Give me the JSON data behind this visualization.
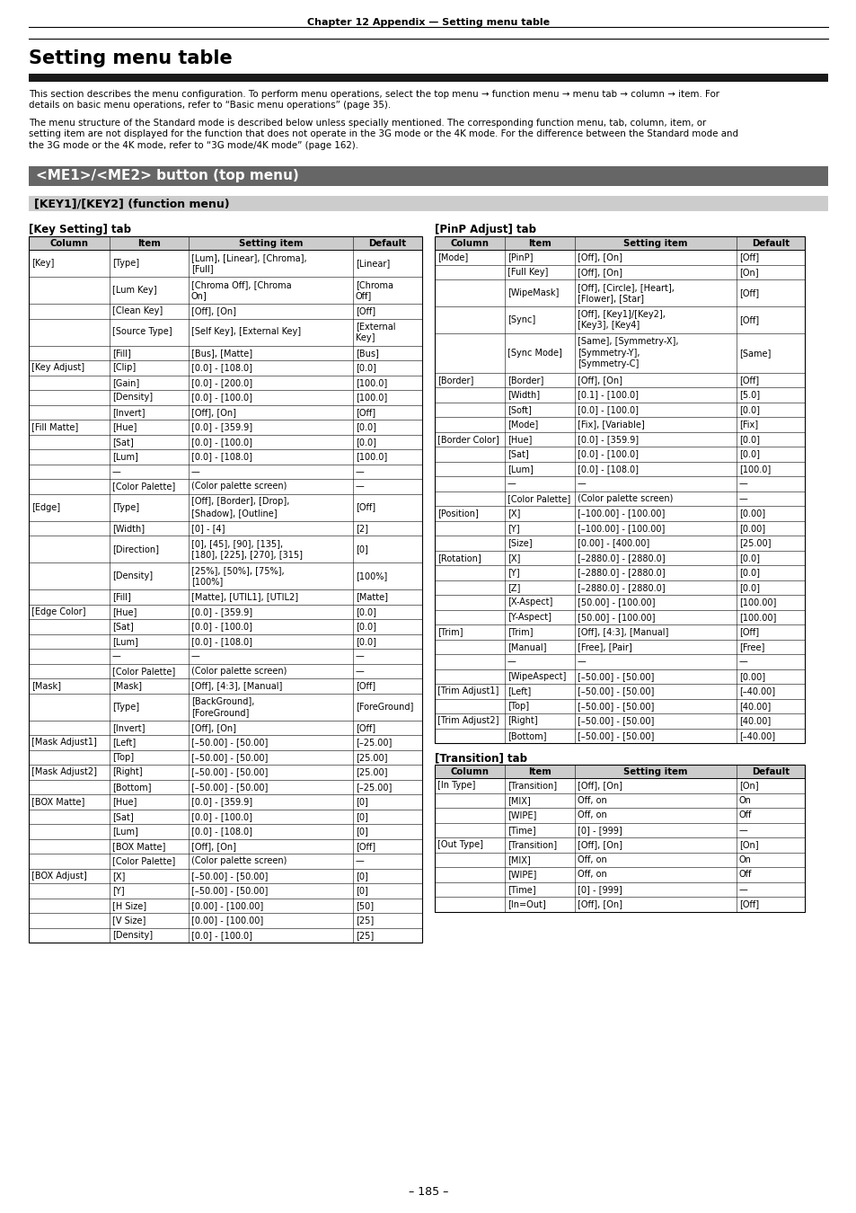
{
  "page_header": "Chapter 12 Appendix — Setting menu table",
  "title": "Setting menu table",
  "title_bar_color": "#1a1a1a",
  "intro_text1": "This section describes the menu configuration. To perform menu operations, select the top menu → function menu → menu tab → column → item. For\ndetails on basic menu operations, refer to “Basic menu operations” (page 35).",
  "intro_text2": "The menu structure of the Standard mode is described below unless specially mentioned. The corresponding function menu, tab, column, item, or\nsetting item are not displayed for the function that does not operate in the 3G mode or the 4K mode. For the difference between the Standard mode and\nthe 3G mode or the 4K mode, refer to “3G mode/4K mode” (page 162).",
  "section_header": "<ME1>/<ME2> button (top menu)",
  "section_header_bg": "#666666",
  "section_header_fg": "#ffffff",
  "subsection_header": "[KEY1]/[KEY2] (function menu)",
  "subsection_header_bg": "#cccccc",
  "left_tab_title": "[Key Setting] tab",
  "right_tab_title": "[PinP Adjust] tab",
  "left_table_headers": [
    "Column",
    "Item",
    "Setting item",
    "Default"
  ],
  "left_table_data": [
    [
      "[Key]",
      "[Type]",
      "[Lum], [Linear], [Chroma],\n[Full]",
      "[Linear]"
    ],
    [
      "",
      "[Lum Key]",
      "[Chroma Off], [Chroma\nOn]",
      "[Chroma\nOff]"
    ],
    [
      "",
      "[Clean Key]",
      "[Off], [On]",
      "[Off]"
    ],
    [
      "",
      "[Source Type]",
      "[Self Key], [External Key]",
      "[External\nKey]"
    ],
    [
      "",
      "[Fill]",
      "[Bus], [Matte]",
      "[Bus]"
    ],
    [
      "[Key Adjust]",
      "[Clip]",
      "[0.0] - [108.0]",
      "[0.0]"
    ],
    [
      "",
      "[Gain]",
      "[0.0] - [200.0]",
      "[100.0]"
    ],
    [
      "",
      "[Density]",
      "[0.0] - [100.0]",
      "[100.0]"
    ],
    [
      "",
      "[Invert]",
      "[Off], [On]",
      "[Off]"
    ],
    [
      "[Fill Matte]",
      "[Hue]",
      "[0.0] - [359.9]",
      "[0.0]"
    ],
    [
      "",
      "[Sat]",
      "[0.0] - [100.0]",
      "[0.0]"
    ],
    [
      "",
      "[Lum]",
      "[0.0] - [108.0]",
      "[100.0]"
    ],
    [
      "",
      "—",
      "—",
      "—"
    ],
    [
      "",
      "[Color Palette]",
      "(Color palette screen)",
      "—"
    ],
    [
      "[Edge]",
      "[Type]",
      "[Off], [Border], [Drop],\n[Shadow], [Outline]",
      "[Off]"
    ],
    [
      "",
      "[Width]",
      "[0] - [4]",
      "[2]"
    ],
    [
      "",
      "[Direction]",
      "[0], [45], [90], [135],\n[180], [225], [270], [315]",
      "[0]"
    ],
    [
      "",
      "[Density]",
      "[25%], [50%], [75%],\n[100%]",
      "[100%]"
    ],
    [
      "",
      "[Fill]",
      "[Matte], [UTIL1], [UTIL2]",
      "[Matte]"
    ],
    [
      "[Edge Color]",
      "[Hue]",
      "[0.0] - [359.9]",
      "[0.0]"
    ],
    [
      "",
      "[Sat]",
      "[0.0] - [100.0]",
      "[0.0]"
    ],
    [
      "",
      "[Lum]",
      "[0.0] - [108.0]",
      "[0.0]"
    ],
    [
      "",
      "—",
      "—",
      "—"
    ],
    [
      "",
      "[Color Palette]",
      "(Color palette screen)",
      "—"
    ],
    [
      "[Mask]",
      "[Mask]",
      "[Off], [4:3], [Manual]",
      "[Off]"
    ],
    [
      "",
      "[Type]",
      "[BackGround],\n[ForeGround]",
      "[ForeGround]"
    ],
    [
      "",
      "[Invert]",
      "[Off], [On]",
      "[Off]"
    ],
    [
      "[Mask Adjust1]",
      "[Left]",
      "[–50.00] - [50.00]",
      "[–25.00]"
    ],
    [
      "",
      "[Top]",
      "[–50.00] - [50.00]",
      "[25.00]"
    ],
    [
      "[Mask Adjust2]",
      "[Right]",
      "[–50.00] - [50.00]",
      "[25.00]"
    ],
    [
      "",
      "[Bottom]",
      "[–50.00] - [50.00]",
      "[–25.00]"
    ],
    [
      "[BOX Matte]",
      "[Hue]",
      "[0.0] - [359.9]",
      "[0]"
    ],
    [
      "",
      "[Sat]",
      "[0.0] - [100.0]",
      "[0]"
    ],
    [
      "",
      "[Lum]",
      "[0.0] - [108.0]",
      "[0]"
    ],
    [
      "",
      "[BOX Matte]",
      "[Off], [On]",
      "[Off]"
    ],
    [
      "",
      "[Color Palette]",
      "(Color palette screen)",
      "—"
    ],
    [
      "[BOX Adjust]",
      "[X]",
      "[–50.00] - [50.00]",
      "[0]"
    ],
    [
      "",
      "[Y]",
      "[–50.00] - [50.00]",
      "[0]"
    ],
    [
      "",
      "[H Size]",
      "[0.00] - [100.00]",
      "[50]"
    ],
    [
      "",
      "[V Size]",
      "[0.00] - [100.00]",
      "[25]"
    ],
    [
      "",
      "[Density]",
      "[0.0] - [100.0]",
      "[25]"
    ]
  ],
  "right_table_headers": [
    "Column",
    "Item",
    "Setting item",
    "Default"
  ],
  "right_table_data": [
    [
      "[Mode]",
      "[PinP]",
      "[Off], [On]",
      "[Off]"
    ],
    [
      "",
      "[Full Key]",
      "[Off], [On]",
      "[On]"
    ],
    [
      "",
      "[WipeMask]",
      "[Off], [Circle], [Heart],\n[Flower], [Star]",
      "[Off]"
    ],
    [
      "",
      "[Sync]",
      "[Off], [Key1]/[Key2],\n[Key3], [Key4]",
      "[Off]"
    ],
    [
      "",
      "[Sync Mode]",
      "[Same], [Symmetry-X],\n[Symmetry-Y],\n[Symmetry-C]",
      "[Same]"
    ],
    [
      "[Border]",
      "[Border]",
      "[Off], [On]",
      "[Off]"
    ],
    [
      "",
      "[Width]",
      "[0.1] - [100.0]",
      "[5.0]"
    ],
    [
      "",
      "[Soft]",
      "[0.0] - [100.0]",
      "[0.0]"
    ],
    [
      "",
      "[Mode]",
      "[Fix], [Variable]",
      "[Fix]"
    ],
    [
      "[Border Color]",
      "[Hue]",
      "[0.0] - [359.9]",
      "[0.0]"
    ],
    [
      "",
      "[Sat]",
      "[0.0] - [100.0]",
      "[0.0]"
    ],
    [
      "",
      "[Lum]",
      "[0.0] - [108.0]",
      "[100.0]"
    ],
    [
      "",
      "—",
      "—",
      "—"
    ],
    [
      "",
      "[Color Palette]",
      "(Color palette screen)",
      "—"
    ],
    [
      "[Position]",
      "[X]",
      "[–100.00] - [100.00]",
      "[0.00]"
    ],
    [
      "",
      "[Y]",
      "[–100.00] - [100.00]",
      "[0.00]"
    ],
    [
      "",
      "[Size]",
      "[0.00] - [400.00]",
      "[25.00]"
    ],
    [
      "[Rotation]",
      "[X]",
      "[–2880.0] - [2880.0]",
      "[0.0]"
    ],
    [
      "",
      "[Y]",
      "[–2880.0] - [2880.0]",
      "[0.0]"
    ],
    [
      "",
      "[Z]",
      "[–2880.0] - [2880.0]",
      "[0.0]"
    ],
    [
      "",
      "[X-Aspect]",
      "[50.00] - [100.00]",
      "[100.00]"
    ],
    [
      "",
      "[Y-Aspect]",
      "[50.00] - [100.00]",
      "[100.00]"
    ],
    [
      "[Trim]",
      "[Trim]",
      "[Off], [4:3], [Manual]",
      "[Off]"
    ],
    [
      "",
      "[Manual]",
      "[Free], [Pair]",
      "[Free]"
    ],
    [
      "",
      "—",
      "—",
      "—"
    ],
    [
      "",
      "[WipeAspect]",
      "[–50.00] - [50.00]",
      "[0.00]"
    ],
    [
      "[Trim Adjust1]",
      "[Left]",
      "[–50.00] - [50.00]",
      "[–40.00]"
    ],
    [
      "",
      "[Top]",
      "[–50.00] - [50.00]",
      "[40.00]"
    ],
    [
      "[Trim Adjust2]",
      "[Right]",
      "[–50.00] - [50.00]",
      "[40.00]"
    ],
    [
      "",
      "[Bottom]",
      "[–50.00] - [50.00]",
      "[–40.00]"
    ]
  ],
  "transition_tab_title": "[Transition] tab",
  "transition_table_headers": [
    "Column",
    "Item",
    "Setting item",
    "Default"
  ],
  "transition_table_data": [
    [
      "[In Type]",
      "[Transition]",
      "[Off], [On]",
      "[On]"
    ],
    [
      "",
      "[MIX]",
      "Off, on",
      "On"
    ],
    [
      "",
      "[WIPE]",
      "Off, on",
      "Off"
    ],
    [
      "",
      "[Time]",
      "[0] - [999]",
      "—"
    ],
    [
      "[Out Type]",
      "[Transition]",
      "[Off], [On]",
      "[On]"
    ],
    [
      "",
      "[MIX]",
      "Off, on",
      "On"
    ],
    [
      "",
      "[WIPE]",
      "Off, on",
      "Off"
    ],
    [
      "",
      "[Time]",
      "[0] - [999]",
      "—"
    ],
    [
      "",
      "[In=Out]",
      "[Off], [On]",
      "[Off]"
    ]
  ],
  "page_number": "– 185 –",
  "bg_color": "#ffffff",
  "table_header_bg": "#cccccc",
  "table_line_color": "#000000"
}
